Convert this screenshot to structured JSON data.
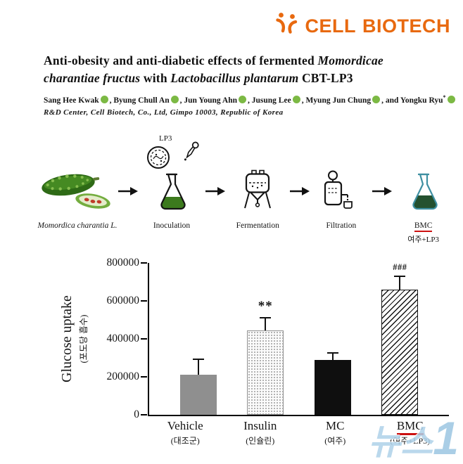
{
  "logo": {
    "brand_cell": "CELL",
    "brand_biotech": "BIOTECH",
    "color": "#e8690f"
  },
  "header": {
    "title": {
      "l1r": "Anti-obesity and anti-diabetic effects of fermented ",
      "l1i": "Momordicae",
      "l2i1": "charantiae fructus",
      "l2r1": " with ",
      "l2i2": "Lactobacillus plantarum",
      "l2r2": " CBT-LP3"
    },
    "authors": [
      {
        "name": "Sang Hee Kwak",
        "sep": ", "
      },
      {
        "name": "Byung Chull An",
        "sep": ", "
      },
      {
        "name": "Jun Young Ahn",
        "sep": ", "
      },
      {
        "name": "Jusung Lee",
        "sep": ", "
      },
      {
        "name": "Myung Jun Chung",
        "sep": ", "
      },
      {
        "name": "and Yongku Ryu",
        "sup": "*",
        "sep": ""
      }
    ],
    "affiliation": "R&D Center, Cell Biotech, Co., Ltd, Gimpo 10003, Republic of Korea"
  },
  "diagram": {
    "lp3_label": "LP3",
    "stages": [
      {
        "label": "Momordica charantia L."
      },
      {
        "label": "Inoculation"
      },
      {
        "label": "Fermentation"
      },
      {
        "label": "Filtration"
      },
      {
        "label": "BMC",
        "sub": "여주+LP3"
      }
    ]
  },
  "chart_data": {
    "type": "bar",
    "title": "",
    "ylabel": "Glucose uptake",
    "ylabel_sub": "(포도당 흡수)",
    "categories": [
      "Vehicle",
      "Insulin",
      "MC",
      "BMC"
    ],
    "categories_sub": [
      "(대조군)",
      "(인슐린)",
      "(여주)",
      "(여주+LP3)"
    ],
    "values": [
      210000,
      445000,
      290000,
      660000
    ],
    "errors": [
      85000,
      70000,
      40000,
      75000
    ],
    "annotations": [
      "",
      "**",
      "",
      "###"
    ],
    "fills": [
      "solid-gray",
      "stipple",
      "solid-black",
      "hatch"
    ],
    "ylim": [
      0,
      800000
    ],
    "yticks": [
      0,
      200000,
      400000,
      600000,
      800000
    ],
    "grid": false,
    "legend": "none"
  },
  "watermark": {
    "text": "뉴스",
    "one": "1"
  },
  "colors": {
    "brand_orange": "#e8690f",
    "bmc_underline": "#cc1111",
    "orcid_green": "#7cb944",
    "flask_liquid_green": "#3c7a1d",
    "bmc_liquid_green": "#24512f",
    "watermark_blue": "#aed2e9"
  }
}
